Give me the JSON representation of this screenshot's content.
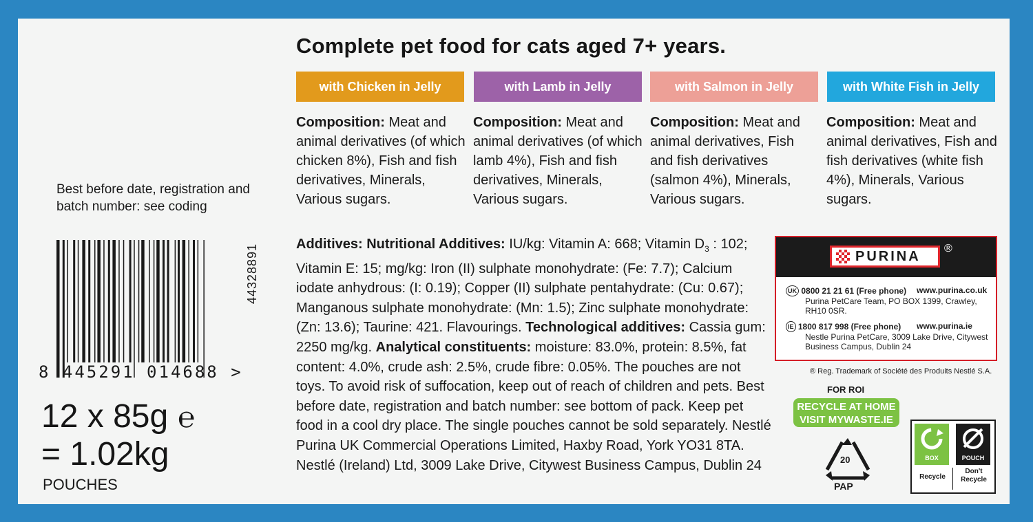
{
  "title": "Complete pet food for cats aged 7+ years.",
  "variants": [
    {
      "label": "with Chicken in Jelly",
      "color": "#e29a1c"
    },
    {
      "label": "with Lamb in Jelly",
      "color": "#9d62a8"
    },
    {
      "label": "with Salmon in Jelly",
      "color": "#eda097"
    },
    {
      "label": "with White Fish in Jelly",
      "color": "#22a7dd"
    }
  ],
  "compositions": [
    {
      "heading": "Composition:",
      "text": " Meat and animal derivatives (of which chicken 8%), Fish and fish derivatives, Minerals, Various sugars."
    },
    {
      "heading": "Composition:",
      "text": " Meat and animal derivatives (of which lamb 4%), Fish and fish derivatives, Minerals, Various sugars."
    },
    {
      "heading": "Composition:",
      "text": " Meat and animal derivatives, Fish and fish derivatives (salmon 4%), Minerals, Various sugars."
    },
    {
      "heading": "Composition:",
      "text": " Meat and animal derivatives, Fish and fish derivatives (white fish 4%), Minerals, Various sugars."
    }
  ],
  "best_before_note": "Best before date, registration and batch number: see coding",
  "barcode": {
    "digits": "8  445291  014688  >",
    "rotated_code": "44328891"
  },
  "weight": {
    "line1": "12 x 85g",
    "estamp": "℮",
    "line2": "= 1.02kg",
    "unit": "POUCHES"
  },
  "additives": {
    "h1": "Additives: Nutritional Additives:",
    "t1": " IU/kg: Vitamin A: 668; Vitamin D",
    "sub": "3",
    "t2": " : 102; Vitamin E: 15; mg/kg: Iron (II) sulphate monohydrate: (Fe: 7.7); Calcium iodate anhydrous: (I: 0.19); Copper (II) sulphate pentahydrate: (Cu: 0.67); Manganous sulphate monohydrate: (Mn: 1.5); Zinc sulphate monohydrate: (Zn: 13.6); Taurine: 421. Flavourings. ",
    "h2": "Technological additives:",
    "t3": " Cassia gum: 2250 mg/kg. ",
    "h3": "Analytical constituents:",
    "t4": " moisture: 83.0%, protein: 8.5%, fat content: 4.0%, crude ash: 2.5%, crude fibre: 0.05%. The pouches are not toys. To avoid risk of suffocation, keep out of reach of children and pets. Best before date, registration and batch number: see bottom of pack. Keep pet food in a cool dry place. The single pouches cannot be sold separately. Nestlé Purina UK Commercial Operations Limited, Haxby Road, York YO31 8TA. Nestlé (Ireland) Ltd, 3009 Lake Drive, Citywest Business Campus, Dublin 24"
  },
  "brand": {
    "name": "PURINA",
    "reg_symbol": "®",
    "uk": {
      "code": "UK",
      "phone": "0800 21 21 61 (Free phone)",
      "url": "www.purina.co.uk",
      "address": "Purina PetCare Team, PO BOX 1399, Crawley, RH10 0SR."
    },
    "ie": {
      "code": "IE",
      "phone": "1800 817 998 (Free phone)",
      "url": "www.purina.ie",
      "address": "Nestle Purina PetCare, 3009 Lake Drive, Citywest Business Campus, Dublin 24"
    }
  },
  "trademark_note": "® Reg. Trademark of Société des Produits Nestlé S.A.",
  "recycling": {
    "for_roi": "FOR ROI",
    "line1": "RECYCLE AT HOME",
    "line2": "VISIT MYWASTE.IE",
    "pap_number": "20",
    "pap_label": "PAP",
    "box_label": "BOX",
    "pouch_label": "POUCH",
    "box_instruction": "Recycle",
    "pouch_instruction_1": "Don't",
    "pouch_instruction_2": "Recycle"
  }
}
